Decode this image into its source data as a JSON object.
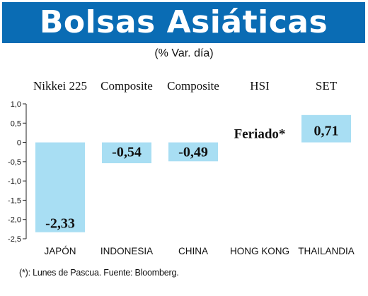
{
  "header": {
    "title": "Bolsas Asiáticas",
    "subtitle": "(% Var. día)"
  },
  "chart_data": {
    "type": "bar",
    "index_names": [
      "Nikkei 225",
      "Composite",
      "Composite",
      "HSI",
      "SET"
    ],
    "categories": [
      "JAPÓN",
      "INDONESIA",
      "CHINA",
      "HONG KONG",
      "THAILANDIA"
    ],
    "values": [
      -2.33,
      -0.54,
      -0.49,
      null,
      0.71
    ],
    "value_labels": [
      "-2,33",
      "-0,54",
      "-0,49",
      "Feriado*",
      "0,71"
    ],
    "y_ticks": [
      1.0,
      0.5,
      0,
      -0.5,
      -1.0,
      -1.5,
      -2.0,
      -2.5
    ],
    "y_tick_labels": [
      "1,0",
      "0,5",
      "0",
      "-0,5",
      "-1,0",
      "-1,5",
      "-2,0",
      "-2,5"
    ],
    "ylim": [
      -2.5,
      1.0
    ],
    "bar_color": "#a8def3",
    "grid": false
  },
  "footnote": "(*): Lunes de Pascua. Fuente: Bloomberg."
}
